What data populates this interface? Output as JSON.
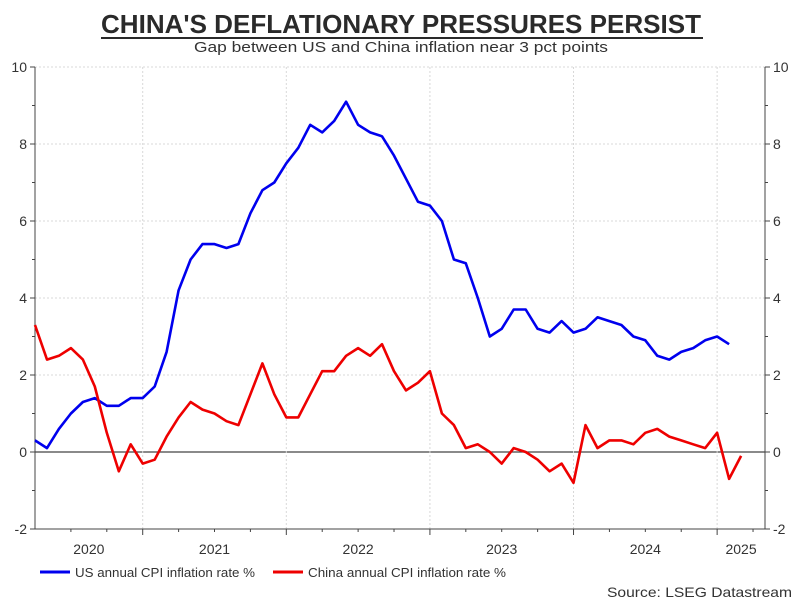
{
  "chart_data": {
    "type": "line",
    "title": "CHINA'S DEFLATIONARY PRESSURES PERSIST",
    "subtitle": "Gap between US and China inflation near 3 pct points",
    "source": "Source: LSEG Datastream",
    "ylim": [
      -2,
      10
    ],
    "yticks": [
      "-2",
      "0",
      "2",
      "4",
      "6",
      "8",
      "10"
    ],
    "ytick_values": [
      -2,
      0,
      2,
      4,
      6,
      8,
      10
    ],
    "xlim": [
      "2020-04",
      "2025-05"
    ],
    "xtick_labels": [
      "2020",
      "2021",
      "2022",
      "2023",
      "2024",
      "2025"
    ],
    "grid": true,
    "legend_position": "bottom-left",
    "series": [
      {
        "name": "US annual CPI inflation rate %",
        "color": "#0000ee",
        "start": "2020-04",
        "values": [
          0.3,
          0.1,
          0.6,
          1.0,
          1.3,
          1.4,
          1.2,
          1.2,
          1.4,
          1.4,
          1.7,
          2.6,
          4.2,
          5.0,
          5.4,
          5.4,
          5.3,
          5.4,
          6.2,
          6.8,
          7.0,
          7.5,
          7.9,
          8.5,
          8.3,
          8.6,
          9.1,
          8.5,
          8.3,
          8.2,
          7.7,
          7.1,
          6.5,
          6.4,
          6.0,
          5.0,
          4.9,
          4.0,
          3.0,
          3.2,
          3.7,
          3.7,
          3.2,
          3.1,
          3.4,
          3.1,
          3.2,
          3.5,
          3.4,
          3.3,
          3.0,
          2.9,
          2.5,
          2.4,
          2.6,
          2.7,
          2.9,
          3.0,
          2.8
        ]
      },
      {
        "name": "China annual CPI inflation rate %",
        "color": "#ee0000",
        "start": "2020-04",
        "values": [
          3.3,
          2.4,
          2.5,
          2.7,
          2.4,
          1.7,
          0.5,
          -0.5,
          0.2,
          -0.3,
          -0.2,
          0.4,
          0.9,
          1.3,
          1.1,
          1.0,
          0.8,
          0.7,
          1.5,
          2.3,
          1.5,
          0.9,
          0.9,
          1.5,
          2.1,
          2.1,
          2.5,
          2.7,
          2.5,
          2.8,
          2.1,
          1.6,
          1.8,
          2.1,
          1.0,
          0.7,
          0.1,
          0.2,
          0.0,
          -0.3,
          0.1,
          0.0,
          -0.2,
          -0.5,
          -0.3,
          -0.8,
          0.7,
          0.1,
          0.3,
          0.3,
          0.2,
          0.5,
          0.6,
          0.4,
          0.3,
          0.2,
          0.1,
          0.5,
          -0.7,
          -0.1
        ]
      }
    ]
  }
}
